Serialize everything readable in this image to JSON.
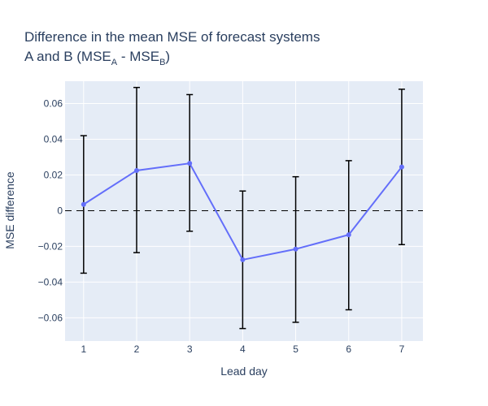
{
  "title": {
    "line1": "Difference in the mean MSE of forecast systems",
    "line2_prefix": "A and B (MSE",
    "line2_sub_a": "A",
    "line2_mid": " - MSE",
    "line2_sub_b": "B",
    "line2_suffix": ")"
  },
  "chart_data": {
    "type": "line",
    "x": [
      1,
      2,
      3,
      4,
      5,
      6,
      7
    ],
    "series": [
      {
        "values": [
          0.0035,
          0.0225,
          0.0265,
          -0.0275,
          -0.0215,
          -0.0135,
          0.0245
        ],
        "error_upper": [
          0.042,
          0.069,
          0.065,
          0.011,
          0.019,
          0.028,
          0.068
        ],
        "error_lower": [
          -0.035,
          -0.0235,
          -0.0115,
          -0.066,
          -0.0625,
          -0.0555,
          -0.019
        ],
        "color": "#636efa"
      }
    ],
    "xlabel": "Lead day",
    "ylabel": "MSE difference",
    "xlim": [
      0.65,
      7.4
    ],
    "ylim": [
      -0.073,
      0.0725
    ],
    "xticks": [
      "1",
      "2",
      "3",
      "4",
      "5",
      "6",
      "7"
    ],
    "yticks": [
      {
        "value": 0.06,
        "label": "0.06"
      },
      {
        "value": 0.04,
        "label": "0.04"
      },
      {
        "value": 0.02,
        "label": "0.02"
      },
      {
        "value": 0,
        "label": "0"
      },
      {
        "value": -0.02,
        "label": "−0.02"
      },
      {
        "value": -0.04,
        "label": "−0.04"
      },
      {
        "value": -0.06,
        "label": "−0.06"
      }
    ],
    "reference_line": {
      "y": 0,
      "style": "dashed",
      "color": "#000000"
    },
    "grid": true,
    "plot_background": "#e5ecf6",
    "gridline_color": "#ffffff",
    "errorbar_color": "#000000"
  }
}
